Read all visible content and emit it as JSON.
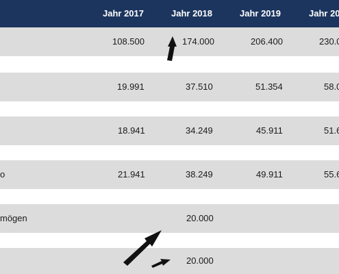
{
  "header": {
    "columns": [
      "Jahr 2017",
      "Jahr 2018",
      "Jahr 2019",
      "Jahr 20"
    ]
  },
  "rows": [
    {
      "label": "",
      "values": [
        "108.500",
        "174.000",
        "206.400",
        "230.0"
      ]
    },
    {
      "label": "",
      "values": [
        "",
        "",
        "",
        ""
      ]
    },
    {
      "label": "",
      "values": [
        "19.991",
        "37.510",
        "51.354",
        "58.0"
      ]
    },
    {
      "label": "",
      "values": [
        "",
        "",
        "",
        ""
      ]
    },
    {
      "label": "",
      "values": [
        "18.941",
        "34.249",
        "45.911",
        "51.6"
      ]
    },
    {
      "label": "",
      "values": [
        "",
        "",
        "",
        ""
      ]
    },
    {
      "label": "o",
      "values": [
        "21.941",
        "38.249",
        "49.911",
        "55.6"
      ]
    },
    {
      "label": "",
      "values": [
        "",
        "",
        "",
        ""
      ]
    },
    {
      "label": "mögen",
      "values": [
        "",
        "20.000",
        "",
        ""
      ]
    },
    {
      "label": "",
      "values": [
        "",
        "",
        "",
        ""
      ]
    },
    {
      "label": "",
      "values": [
        "",
        "20.000",
        "",
        ""
      ]
    }
  ],
  "colors": {
    "header_bg": "#1c355e",
    "header_text": "#ffffff",
    "row_shaded": "#dcdcdc",
    "row_plain": "#ffffff",
    "arrow": "#111111"
  },
  "icons": [
    "arrow-icon"
  ]
}
